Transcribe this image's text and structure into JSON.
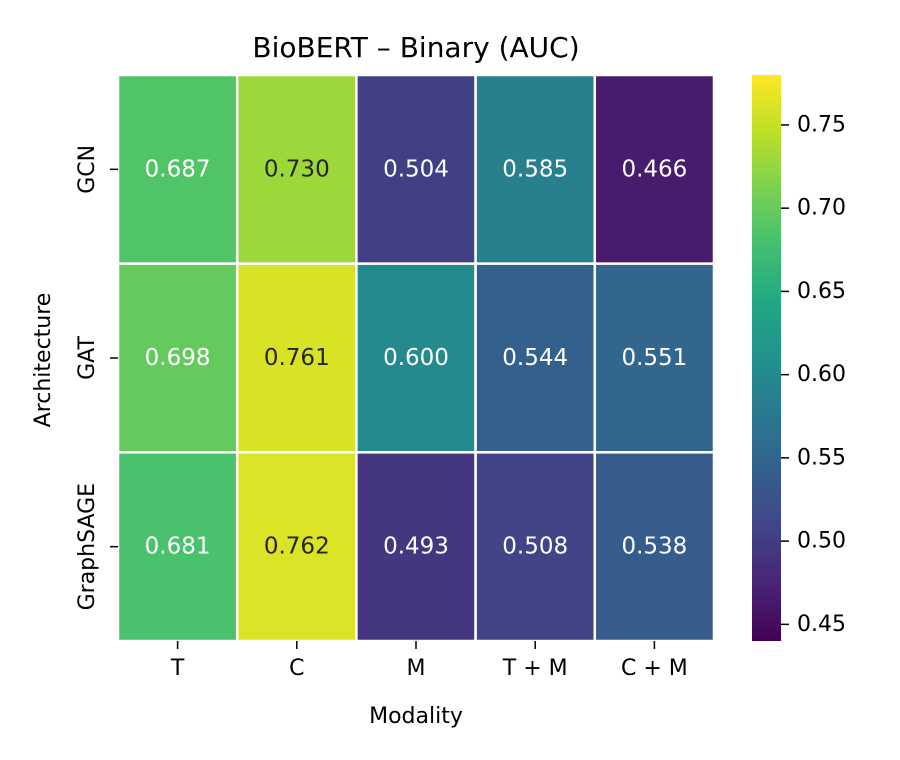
{
  "chart_data": {
    "type": "heatmap",
    "title": "BioBERT – Binary (AUC)",
    "xlabel": "Modality",
    "ylabel": "Architecture",
    "x_categories": [
      "T",
      "C",
      "M",
      "T + M",
      "C + M"
    ],
    "y_categories": [
      "GCN",
      "GAT",
      "GraphSAGE"
    ],
    "values": [
      [
        0.687,
        0.73,
        0.504,
        0.585,
        0.466
      ],
      [
        0.698,
        0.761,
        0.6,
        0.544,
        0.551
      ],
      [
        0.681,
        0.762,
        0.493,
        0.508,
        0.538
      ]
    ],
    "value_labels": [
      [
        "0.687",
        "0.730",
        "0.504",
        "0.585",
        "0.466"
      ],
      [
        "0.698",
        "0.761",
        "0.600",
        "0.544",
        "0.551"
      ],
      [
        "0.681",
        "0.762",
        "0.493",
        "0.508",
        "0.538"
      ]
    ],
    "colormap": "viridis",
    "color_range": [
      0.44,
      0.78
    ],
    "colorbar_ticks": [
      0.45,
      0.5,
      0.55,
      0.6,
      0.65,
      0.7,
      0.75
    ],
    "colorbar_tick_labels": [
      "0.45",
      "0.50",
      "0.55",
      "0.60",
      "0.65",
      "0.70",
      "0.75"
    ],
    "grid": false,
    "colorbar_placement": "right"
  }
}
